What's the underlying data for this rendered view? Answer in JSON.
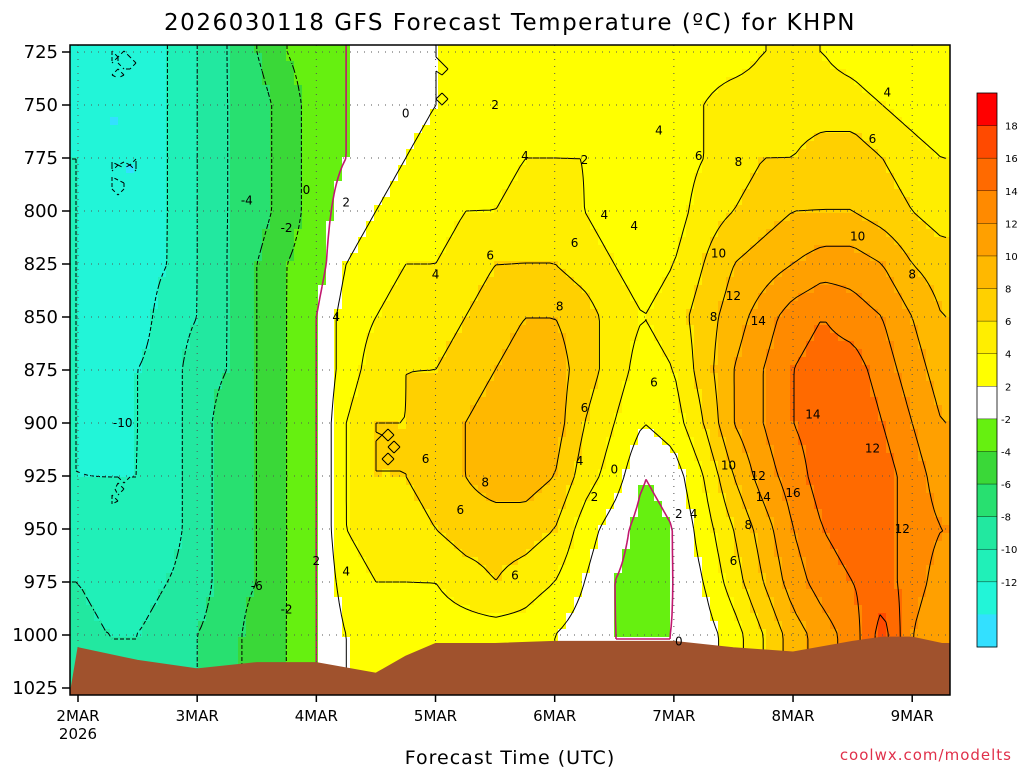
{
  "title": "2026030118 GFS Forecast Temperature (ºC) for KHPN",
  "credit": "coolwx.com/modelts",
  "chart_data": {
    "type": "heatmap",
    "title": "2026030118 GFS Forecast Temperature (ºC) for KHPN",
    "xlabel": "Forecast Time (UTC)",
    "ylabel": "",
    "x_ticks": [
      "2MAR",
      "3MAR",
      "4MAR",
      "5MAR",
      "6MAR",
      "7MAR",
      "8MAR",
      "9MAR"
    ],
    "x_sublabel": "2026",
    "y_ticks": [
      725,
      750,
      775,
      800,
      825,
      850,
      875,
      900,
      925,
      950,
      975,
      1000,
      1025
    ],
    "ylim": [
      725,
      1025
    ],
    "grid": "dotted",
    "colorbar": {
      "levels": [
        -12,
        -10,
        -8,
        -6,
        -4,
        -2,
        2,
        4,
        6,
        8,
        10,
        12,
        14,
        16,
        18
      ],
      "colors": [
        "#33e0ff",
        "#22f5d8",
        "#20f0b8",
        "#22e8a0",
        "#28e070",
        "#3ad838",
        "#66f010",
        "#ffffff",
        "#ffff00",
        "#ffee00",
        "#ffd000",
        "#ffb800",
        "#ffa000",
        "#ff8a00",
        "#ff6a00",
        "#ff4a00",
        "#ff0000"
      ]
    },
    "x_hours": [
      0,
      6,
      12,
      18,
      24,
      30,
      36,
      42,
      48,
      54,
      60,
      66,
      72,
      78,
      84,
      90,
      96,
      102,
      108,
      114,
      120,
      126,
      132,
      138,
      144,
      150,
      156,
      162,
      168,
      174
    ],
    "levels_hpa": [
      725,
      750,
      775,
      800,
      825,
      850,
      875,
      900,
      925,
      950,
      975,
      1000
    ],
    "temperature_c": [
      [
        -11,
        -12,
        -12,
        -10,
        -8,
        -6,
        -4,
        -2,
        -1,
        0,
        1,
        1,
        2,
        2,
        2,
        2,
        3,
        3,
        2,
        2,
        2,
        3,
        3,
        4,
        4,
        4,
        3,
        2,
        2,
        2
      ],
      [
        -11,
        -12,
        -12,
        -10,
        -8,
        -6,
        -5,
        -3,
        -1,
        0,
        1,
        1,
        2,
        2,
        3,
        3,
        3,
        3,
        3,
        3,
        3,
        4,
        5,
        5,
        5,
        5,
        5,
        4,
        3,
        2
      ],
      [
        -10,
        -12,
        -12,
        -10,
        -8,
        -6,
        -5,
        -3,
        -1,
        0,
        1,
        2,
        3,
        3,
        3,
        4,
        4,
        4,
        3,
        3,
        3,
        4,
        5,
        6,
        6,
        7,
        7,
        6,
        5,
        4
      ],
      [
        -10,
        -12,
        -12,
        -10,
        -8,
        -6,
        -5,
        -3,
        -1,
        1,
        2,
        3,
        3,
        4,
        4,
        5,
        5,
        4,
        3,
        3,
        3,
        5,
        6,
        7,
        8,
        8,
        8,
        7,
        6,
        5
      ],
      [
        -10,
        -11,
        -11,
        -10,
        -8,
        -6,
        -4,
        -2,
        -1,
        2,
        3,
        4,
        4,
        5,
        6,
        6,
        6,
        5,
        4,
        3,
        4,
        6,
        8,
        9,
        10,
        11,
        11,
        10,
        8,
        7
      ],
      [
        -10,
        -11,
        -11,
        -9,
        -8,
        -6,
        -4,
        -2,
        0,
        3,
        4,
        5,
        5,
        6,
        7,
        8,
        8,
        7,
        5,
        4,
        5,
        7,
        9,
        11,
        13,
        14,
        13,
        12,
        10,
        8
      ],
      [
        -10,
        -11,
        -10,
        -9,
        -7,
        -6,
        -4,
        -2,
        0,
        3,
        5,
        6,
        6,
        7,
        8,
        9,
        9,
        7,
        5,
        3,
        4,
        7,
        10,
        12,
        14,
        15,
        15,
        13,
        11,
        9
      ],
      [
        -10,
        -11,
        -10,
        -9,
        -7,
        -5,
        -4,
        -2,
        0,
        4,
        6,
        6,
        7,
        8,
        9,
        9,
        9,
        6,
        4,
        2,
        3,
        6,
        10,
        12,
        14,
        15,
        16,
        14,
        12,
        10
      ],
      [
        -10,
        -10,
        -10,
        -9,
        -7,
        -5,
        -4,
        -2,
        0,
        4,
        6,
        6,
        7,
        8,
        9,
        9,
        8,
        5,
        3,
        0,
        1,
        4,
        8,
        11,
        13,
        15,
        16,
        15,
        13,
        11
      ],
      [
        -9,
        -10,
        -10,
        -9,
        -7,
        -5,
        -4,
        -2,
        0,
        4,
        5,
        5,
        6,
        7,
        7,
        7,
        6,
        3,
        1,
        -1,
        0,
        3,
        6,
        9,
        12,
        14,
        15,
        15,
        13,
        12
      ],
      [
        -8,
        -9,
        -9,
        -8,
        -7,
        -5,
        -4,
        -2,
        0,
        3,
        4,
        4,
        4,
        5,
        6,
        5,
        4,
        2,
        0,
        -1,
        0,
        2,
        5,
        8,
        11,
        13,
        14,
        15,
        13,
        11
      ],
      [
        -7,
        -8,
        -8,
        -7,
        -6,
        -5,
        -3,
        -2,
        0,
        2,
        3,
        3,
        3,
        3,
        3,
        3,
        2,
        1,
        0,
        0,
        0,
        1,
        3,
        6,
        9,
        11,
        13,
        17,
        12,
        10
      ]
    ],
    "contour_labels": [
      "-10",
      "-6",
      "-4",
      "-2",
      "0",
      "2",
      "4",
      "6",
      "8",
      "10",
      "12",
      "14",
      "16"
    ],
    "surface_color": "#a0522d"
  }
}
